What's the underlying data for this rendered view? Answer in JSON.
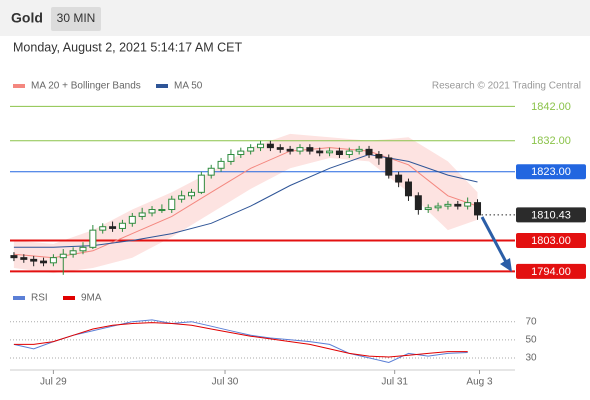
{
  "header": {
    "symbol": "Gold",
    "interval": "30 MIN",
    "timestamp": "Monday, August 2, 2021 5:14:17 AM CET"
  },
  "chart_data": [
    {
      "type": "candlestick",
      "credit": "Research © 2021 Trading Central",
      "xlim": [
        -0.4,
        50.8
      ],
      "ylim": [
        1791.5,
        1852
      ],
      "xticks": [
        {
          "value": 4,
          "label": "Jul 29"
        },
        {
          "value": 21.4,
          "label": "Jul 30"
        },
        {
          "value": 38.6,
          "label": "Jul 31"
        },
        {
          "value": 47.2,
          "label": "Aug 3"
        }
      ],
      "up_color": "#2e8b3e",
      "down_color": "#222222",
      "open": [
        1798.6,
        1798,
        1797.5,
        1797,
        1796.5,
        1798,
        1799,
        1800,
        1801,
        1806,
        1807,
        1806.5,
        1808,
        1810,
        1811,
        1812,
        1812,
        1815,
        1816,
        1817,
        1822,
        1824,
        1826,
        1828,
        1829,
        1830,
        1831,
        1830,
        1829.5,
        1829,
        1830,
        1829,
        1828.5,
        1829,
        1828,
        1829,
        1829.5,
        1828,
        1827,
        1822,
        1820,
        1816,
        1812,
        1812.5,
        1813,
        1813.5,
        1813,
        1814
      ],
      "high": [
        1799.6,
        1799,
        1798.5,
        1798,
        1799,
        1800.5,
        1801,
        1802.5,
        1807.5,
        1808,
        1808.5,
        1809,
        1811,
        1812.5,
        1813,
        1813.5,
        1816,
        1817.5,
        1818,
        1823,
        1825,
        1827,
        1829.5,
        1830,
        1831,
        1832,
        1832,
        1831,
        1830.5,
        1831,
        1831,
        1830,
        1830,
        1830,
        1830,
        1830.5,
        1830.5,
        1829,
        1828,
        1823,
        1821,
        1817,
        1813.5,
        1814,
        1814.5,
        1814.5,
        1815.5,
        1815
      ],
      "low": [
        1797,
        1796.5,
        1795.5,
        1795.5,
        1795.5,
        1793,
        1798,
        1799,
        1800.5,
        1805,
        1805.5,
        1805.5,
        1807,
        1809,
        1810,
        1811,
        1811,
        1814,
        1815,
        1816.5,
        1821,
        1823,
        1825,
        1827,
        1828,
        1829,
        1829,
        1828.5,
        1828,
        1828,
        1828,
        1827.5,
        1827.5,
        1827,
        1827,
        1828,
        1827,
        1825,
        1821,
        1818.5,
        1814.5,
        1810.5,
        1811,
        1811.5,
        1812,
        1812,
        1812,
        1809
      ],
      "close": [
        1798,
        1797.5,
        1797,
        1796.5,
        1798,
        1799,
        1800,
        1801,
        1806,
        1807,
        1806.5,
        1808,
        1810,
        1811,
        1812,
        1812,
        1815,
        1816,
        1817,
        1822,
        1824,
        1826,
        1828,
        1829,
        1830,
        1831,
        1830,
        1829.5,
        1829,
        1830,
        1829,
        1828.5,
        1829,
        1828,
        1829,
        1829.5,
        1828,
        1827,
        1822,
        1820,
        1816,
        1812,
        1812.5,
        1813,
        1813.5,
        1813,
        1814,
        1810.43
      ],
      "series": [
        {
          "name": "MA 20 + Bollinger Bands",
          "color": "#f4877f",
          "band_color": "#fde3e1",
          "x": [
            0,
            4,
            8,
            12,
            16,
            20,
            24,
            28,
            32,
            36,
            40,
            44,
            47
          ],
          "values": [
            1799,
            1798,
            1800,
            1805,
            1810,
            1817,
            1824,
            1829,
            1830,
            1829,
            1825,
            1816,
            1813
          ],
          "upper": [
            1803,
            1802,
            1806,
            1812,
            1817,
            1823,
            1830,
            1834,
            1833,
            1832,
            1833,
            1826,
            1817
          ],
          "lower": [
            1795,
            1793.5,
            1795,
            1798,
            1804,
            1811,
            1818,
            1824,
            1827,
            1826,
            1817,
            1806,
            1809
          ]
        },
        {
          "name": "MA 50",
          "color": "#2f5597",
          "x": [
            0,
            4,
            8,
            12,
            16,
            20,
            24,
            28,
            32,
            36,
            40,
            44,
            47
          ],
          "values": [
            1801,
            1801,
            1801.5,
            1803,
            1805,
            1808,
            1813,
            1819,
            1824,
            1828,
            1826,
            1822,
            1820
          ]
        }
      ],
      "levels": [
        {
          "value": 1842,
          "label": "1842.00",
          "color": "#8bc34a",
          "width": 1,
          "box": false
        },
        {
          "value": 1832,
          "label": "1832.00",
          "color": "#8bc34a",
          "width": 1,
          "box": false
        },
        {
          "value": 1823,
          "label": "1823.00",
          "color": "#2266e0",
          "width": 1,
          "box": true
        },
        {
          "value": 1810.43,
          "label": "1810.43",
          "color": "#2b2b2b",
          "width": 1,
          "box": true,
          "dotted": true
        },
        {
          "value": 1803,
          "label": "1803.00",
          "color": "#e31010",
          "width": 2,
          "box": true
        },
        {
          "value": 1794,
          "label": "1794.00",
          "color": "#e31010",
          "width": 2,
          "box": true
        }
      ]
    },
    {
      "type": "line",
      "xlim": [
        -0.4,
        50.8
      ],
      "ylim": [
        20,
        105
      ],
      "yticks": [
        30,
        50,
        70
      ],
      "grid": true,
      "series": [
        {
          "name": "RSI",
          "color": "#5b7fd6",
          "x": [
            0,
            2,
            4,
            6,
            8,
            10,
            12,
            14,
            16,
            18,
            20,
            22,
            24,
            26,
            28,
            30,
            32,
            34,
            36,
            38,
            40,
            42,
            44,
            46
          ],
          "values": [
            45,
            40,
            48,
            55,
            60,
            65,
            70,
            72,
            68,
            70,
            65,
            60,
            55,
            52,
            50,
            48,
            45,
            35,
            30,
            25,
            35,
            32,
            35,
            36
          ]
        },
        {
          "name": "9MA",
          "color": "#e00000",
          "x": [
            0,
            2,
            4,
            6,
            8,
            10,
            12,
            14,
            16,
            18,
            20,
            22,
            24,
            26,
            28,
            30,
            32,
            34,
            36,
            38,
            40,
            42,
            44,
            46
          ],
          "values": [
            45,
            45,
            48,
            55,
            62,
            66,
            68,
            69,
            68,
            66,
            62,
            58,
            54,
            51,
            48,
            45,
            40,
            35,
            32,
            31,
            33,
            35,
            37,
            37
          ]
        }
      ]
    }
  ]
}
